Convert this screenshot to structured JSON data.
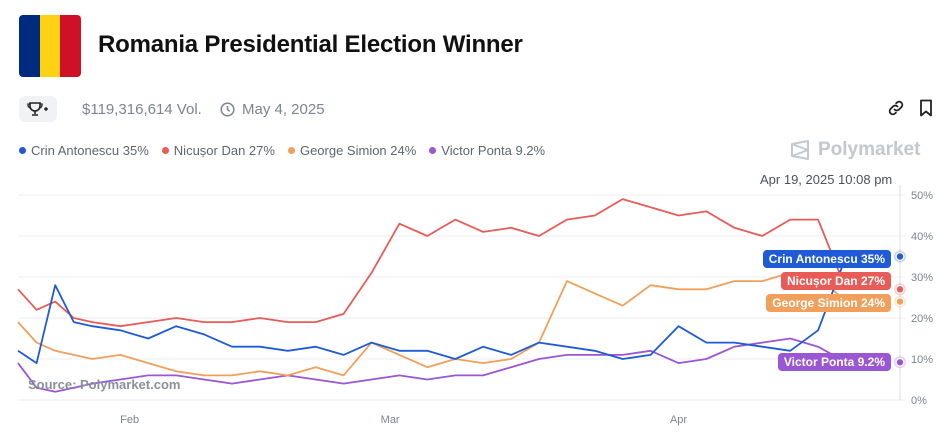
{
  "header": {
    "title": "Romania Presidential Election Winner",
    "flag_colors": [
      "#002B7F",
      "#FCD116",
      "#CE1126"
    ]
  },
  "meta": {
    "volume": "$119,316,614 Vol.",
    "date": "May 4, 2025",
    "icons": [
      "trophy-icon",
      "clock-icon",
      "link-icon",
      "bookmark-icon"
    ]
  },
  "brand": {
    "name": "Polymarket"
  },
  "hover_timestamp": "Apr 19, 2025 10:08 pm",
  "source": "Source: Polymarket.com",
  "chart_data": {
    "type": "line",
    "x_ticks": [
      "Feb",
      "Mar",
      "Apr"
    ],
    "y_ticks": [
      "0%",
      "10%",
      "20%",
      "30%",
      "40%",
      "50%"
    ],
    "ylim": [
      0,
      50
    ],
    "grid": true,
    "legend_position": "top-left",
    "series": [
      {
        "name": "Crin Antonescu",
        "legend": "Crin Antonescu 35%",
        "end_label": "Crin Antonescu 35%",
        "color": "#1f5bd6",
        "x": [
          "2025-01-20",
          "2025-01-22",
          "2025-01-24",
          "2025-01-26",
          "2025-01-28",
          "2025-01-31",
          "2025-02-03",
          "2025-02-06",
          "2025-02-09",
          "2025-02-12",
          "2025-02-15",
          "2025-02-18",
          "2025-02-21",
          "2025-02-24",
          "2025-02-27",
          "2025-03-02",
          "2025-03-05",
          "2025-03-08",
          "2025-03-11",
          "2025-03-14",
          "2025-03-17",
          "2025-03-20",
          "2025-03-23",
          "2025-03-26",
          "2025-03-29",
          "2025-04-01",
          "2025-04-04",
          "2025-04-07",
          "2025-04-10",
          "2025-04-13",
          "2025-04-16",
          "2025-04-19"
        ],
        "values": [
          12,
          9,
          28,
          19,
          18,
          17,
          15,
          18,
          16,
          13,
          13,
          12,
          13,
          11,
          14,
          12,
          12,
          10,
          13,
          11,
          14,
          13,
          12,
          10,
          11,
          18,
          14,
          14,
          13,
          12,
          17,
          35
        ]
      },
      {
        "name": "Nicușor Dan",
        "legend": "Nicușor Dan 27%",
        "end_label": "Nicușor Dan 27%",
        "color": "#e85b57",
        "x": [
          "2025-01-20",
          "2025-01-22",
          "2025-01-24",
          "2025-01-26",
          "2025-01-28",
          "2025-01-31",
          "2025-02-03",
          "2025-02-06",
          "2025-02-09",
          "2025-02-12",
          "2025-02-15",
          "2025-02-18",
          "2025-02-21",
          "2025-02-24",
          "2025-02-27",
          "2025-03-02",
          "2025-03-05",
          "2025-03-08",
          "2025-03-11",
          "2025-03-14",
          "2025-03-17",
          "2025-03-20",
          "2025-03-23",
          "2025-03-26",
          "2025-03-29",
          "2025-04-01",
          "2025-04-04",
          "2025-04-07",
          "2025-04-10",
          "2025-04-13",
          "2025-04-16",
          "2025-04-19"
        ],
        "values": [
          27,
          22,
          24,
          20,
          19,
          18,
          19,
          20,
          19,
          19,
          20,
          19,
          19,
          21,
          31,
          43,
          40,
          44,
          41,
          42,
          40,
          44,
          45,
          49,
          47,
          45,
          46,
          42,
          40,
          44,
          44,
          27
        ]
      },
      {
        "name": "George Simion",
        "legend": "George Simion 24%",
        "end_label": "George Simion 24%",
        "color": "#f0a05a",
        "x": [
          "2025-01-20",
          "2025-01-22",
          "2025-01-24",
          "2025-01-26",
          "2025-01-28",
          "2025-01-31",
          "2025-02-03",
          "2025-02-06",
          "2025-02-09",
          "2025-02-12",
          "2025-02-15",
          "2025-02-18",
          "2025-02-21",
          "2025-02-24",
          "2025-02-27",
          "2025-03-02",
          "2025-03-05",
          "2025-03-08",
          "2025-03-11",
          "2025-03-14",
          "2025-03-17",
          "2025-03-20",
          "2025-03-23",
          "2025-03-26",
          "2025-03-29",
          "2025-04-01",
          "2025-04-04",
          "2025-04-07",
          "2025-04-10",
          "2025-04-13",
          "2025-04-16",
          "2025-04-19"
        ],
        "values": [
          19,
          14,
          12,
          11,
          10,
          11,
          9,
          7,
          6,
          6,
          7,
          6,
          8,
          6,
          14,
          11,
          8,
          10,
          9,
          10,
          14,
          29,
          26,
          23,
          28,
          27,
          27,
          29,
          29,
          31,
          30,
          24
        ]
      },
      {
        "name": "Victor Ponta",
        "legend": "Victor Ponta 9.2%",
        "end_label": "Victor Ponta 9.2%",
        "color": "#9b57d3",
        "x": [
          "2025-01-20",
          "2025-01-22",
          "2025-01-24",
          "2025-01-26",
          "2025-01-28",
          "2025-01-31",
          "2025-02-03",
          "2025-02-06",
          "2025-02-09",
          "2025-02-12",
          "2025-02-15",
          "2025-02-18",
          "2025-02-21",
          "2025-02-24",
          "2025-02-27",
          "2025-03-02",
          "2025-03-05",
          "2025-03-08",
          "2025-03-11",
          "2025-03-14",
          "2025-03-17",
          "2025-03-20",
          "2025-03-23",
          "2025-03-26",
          "2025-03-29",
          "2025-04-01",
          "2025-04-04",
          "2025-04-07",
          "2025-04-10",
          "2025-04-13",
          "2025-04-16",
          "2025-04-19"
        ],
        "values": [
          9,
          3,
          2,
          3,
          4,
          5,
          6,
          6,
          5,
          4,
          5,
          6,
          5,
          4,
          5,
          6,
          5,
          6,
          6,
          8,
          10,
          11,
          11,
          11,
          12,
          9,
          10,
          13,
          14,
          15,
          13,
          9.2
        ]
      }
    ]
  }
}
